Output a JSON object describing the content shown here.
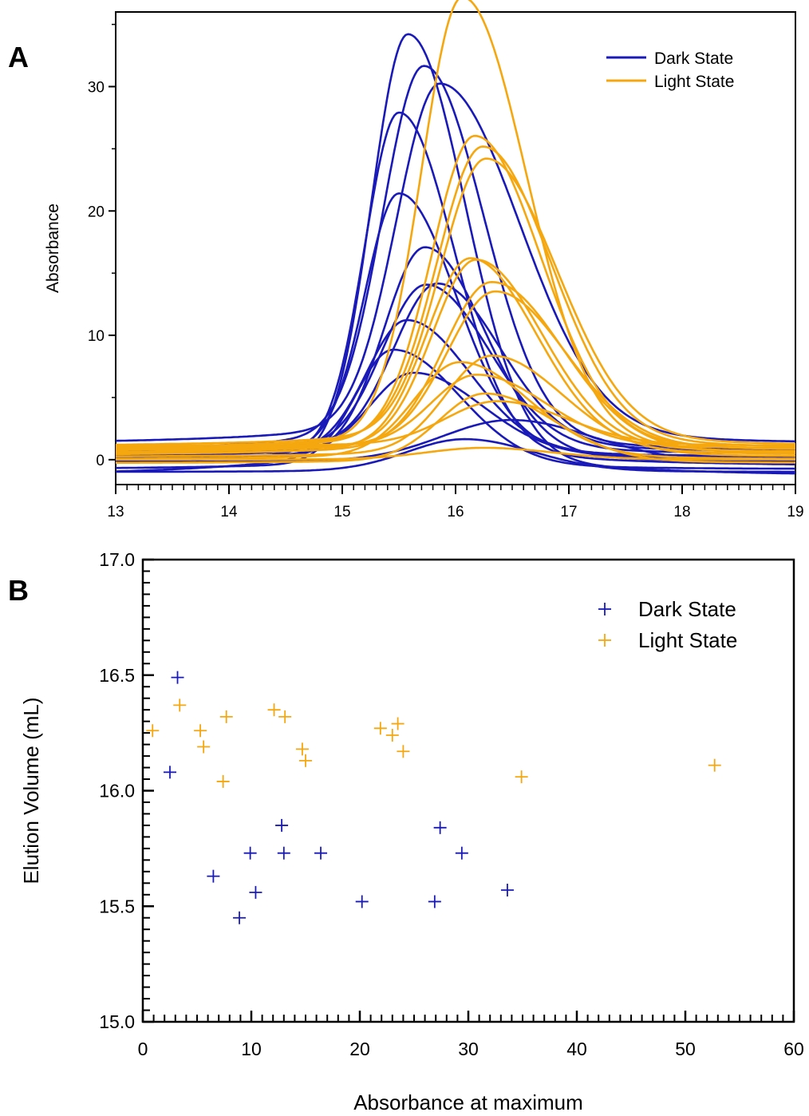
{
  "colors": {
    "dark": "#1a1ab8",
    "light": "#f5a70f",
    "axis": "#000000"
  },
  "chart_data": [
    {
      "panel": "A",
      "type": "line",
      "xlabel": "",
      "ylabel": "Absorbance",
      "xlim": [
        13,
        19
      ],
      "ylim": [
        -2,
        36
      ],
      "xticks": [
        13,
        14,
        15,
        16,
        17,
        18,
        19
      ],
      "yticks": [
        0,
        10,
        20,
        30
      ],
      "grid": false,
      "legend_position": "top-right",
      "legend": [
        {
          "label": "Dark State",
          "color_key": "dark"
        },
        {
          "label": "Light State",
          "color_key": "light"
        }
      ],
      "curve_model": "asymmetric peak: amplitude at peak_x, left/right widths (mL), baseline offset",
      "dark_curves": [
        {
          "peak_x": 15.58,
          "amp": 33.6,
          "wl": 0.32,
          "wr": 0.5,
          "base": -1.4
        },
        {
          "peak_x": 15.72,
          "amp": 29.4,
          "wl": 0.36,
          "wr": 0.52,
          "base": 0.5
        },
        {
          "peak_x": 15.86,
          "amp": 27.4,
          "wl": 0.38,
          "wr": 0.7,
          "base": 1.2
        },
        {
          "peak_x": 15.5,
          "amp": 26.9,
          "wl": 0.3,
          "wr": 0.48,
          "base": -0.6
        },
        {
          "peak_x": 15.5,
          "amp": 20.2,
          "wl": 0.3,
          "wr": 0.5,
          "base": 0.0
        },
        {
          "peak_x": 15.73,
          "amp": 16.4,
          "wl": 0.36,
          "wr": 0.52,
          "base": -0.3
        },
        {
          "peak_x": 15.74,
          "amp": 12.9,
          "wl": 0.38,
          "wr": 0.55,
          "base": 0.4
        },
        {
          "peak_x": 15.84,
          "amp": 12.8,
          "wl": 0.38,
          "wr": 0.55,
          "base": 0.6
        },
        {
          "peak_x": 15.57,
          "amp": 10.4,
          "wl": 0.35,
          "wr": 0.55,
          "base": 0.2
        },
        {
          "peak_x": 15.45,
          "amp": 9.1,
          "wl": 0.33,
          "wr": 0.58,
          "base": -0.8
        },
        {
          "peak_x": 15.63,
          "amp": 6.5,
          "wl": 0.38,
          "wr": 0.6,
          "base": 0.1
        },
        {
          "peak_x": 16.49,
          "amp": 3.2,
          "wl": 0.6,
          "wr": 0.7,
          "base": -0.2
        },
        {
          "peak_x": 16.08,
          "amp": 2.5,
          "wl": 0.5,
          "wr": 0.6,
          "base": -1.0
        }
      ],
      "light_curves": [
        {
          "peak_x": 16.06,
          "amp": 34.9,
          "wl": 0.36,
          "wr": 0.56,
          "base": 0.2
        },
        {
          "peak_x": 16.17,
          "amp": 24.0,
          "wl": 0.38,
          "wr": 0.58,
          "base": 0.6
        },
        {
          "peak_x": 16.24,
          "amp": 23.0,
          "wl": 0.4,
          "wr": 0.6,
          "base": 0.8
        },
        {
          "peak_x": 16.27,
          "amp": 21.9,
          "wl": 0.4,
          "wr": 0.62,
          "base": 1.0
        },
        {
          "peak_x": 16.13,
          "amp": 15.0,
          "wl": 0.38,
          "wr": 0.58,
          "base": 0.3
        },
        {
          "peak_x": 16.18,
          "amp": 14.7,
          "wl": 0.38,
          "wr": 0.58,
          "base": 0.5
        },
        {
          "peak_x": 16.32,
          "amp": 13.1,
          "wl": 0.42,
          "wr": 0.62,
          "base": 0.4
        },
        {
          "peak_x": 16.35,
          "amp": 12.1,
          "wl": 0.42,
          "wr": 0.62,
          "base": 0.7
        },
        {
          "peak_x": 16.04,
          "amp": 7.4,
          "wl": 0.4,
          "wr": 0.6,
          "base": 0.0
        },
        {
          "peak_x": 16.32,
          "amp": 7.7,
          "wl": 0.4,
          "wr": 0.62,
          "base": 0.2
        },
        {
          "peak_x": 16.26,
          "amp": 5.3,
          "wl": 0.4,
          "wr": 0.6,
          "base": -0.3
        },
        {
          "peak_x": 16.19,
          "amp": 5.6,
          "wl": 0.4,
          "wr": 0.6,
          "base": 0.9
        },
        {
          "peak_x": 16.37,
          "amp": 3.4,
          "wl": 0.45,
          "wr": 0.6,
          "base": 1.1
        },
        {
          "peak_x": 16.25,
          "amp": 0.9,
          "wl": 0.5,
          "wr": 0.6,
          "base": 0.0
        }
      ]
    },
    {
      "panel": "B",
      "type": "scatter",
      "xlabel": "Absorbance at maximum",
      "ylabel": "Elution Volume (mL)",
      "xlim": [
        0,
        60
      ],
      "ylim": [
        15.0,
        17.0
      ],
      "xticks": [
        0,
        10,
        20,
        30,
        40,
        50,
        60
      ],
      "yticks": [
        15.0,
        15.5,
        16.0,
        16.5,
        17.0
      ],
      "ytick_labels": [
        "15.0",
        "15.5",
        "16.0",
        "16.5",
        "17.0"
      ],
      "grid": false,
      "legend_position": "top-right",
      "marker": "plus",
      "series": [
        {
          "name": "Dark State",
          "color_key": "dark",
          "points": [
            [
              3.2,
              16.49
            ],
            [
              2.5,
              16.08
            ],
            [
              12.8,
              15.85
            ],
            [
              27.4,
              15.84
            ],
            [
              9.9,
              15.73
            ],
            [
              13.0,
              15.73
            ],
            [
              16.4,
              15.73
            ],
            [
              29.4,
              15.73
            ],
            [
              6.5,
              15.63
            ],
            [
              33.6,
              15.57
            ],
            [
              10.4,
              15.56
            ],
            [
              20.2,
              15.52
            ],
            [
              26.9,
              15.52
            ],
            [
              8.9,
              15.45
            ]
          ]
        },
        {
          "name": "Light State",
          "color_key": "light",
          "points": [
            [
              3.4,
              16.37
            ],
            [
              0.9,
              16.26
            ],
            [
              5.3,
              16.26
            ],
            [
              5.6,
              16.19
            ],
            [
              7.7,
              16.32
            ],
            [
              7.4,
              16.04
            ],
            [
              12.1,
              16.35
            ],
            [
              13.1,
              16.32
            ],
            [
              14.7,
              16.18
            ],
            [
              15.0,
              16.13
            ],
            [
              21.9,
              16.27
            ],
            [
              23.0,
              16.24
            ],
            [
              23.5,
              16.29
            ],
            [
              24.0,
              16.17
            ],
            [
              34.9,
              16.06
            ],
            [
              52.7,
              16.11
            ]
          ]
        }
      ]
    }
  ]
}
